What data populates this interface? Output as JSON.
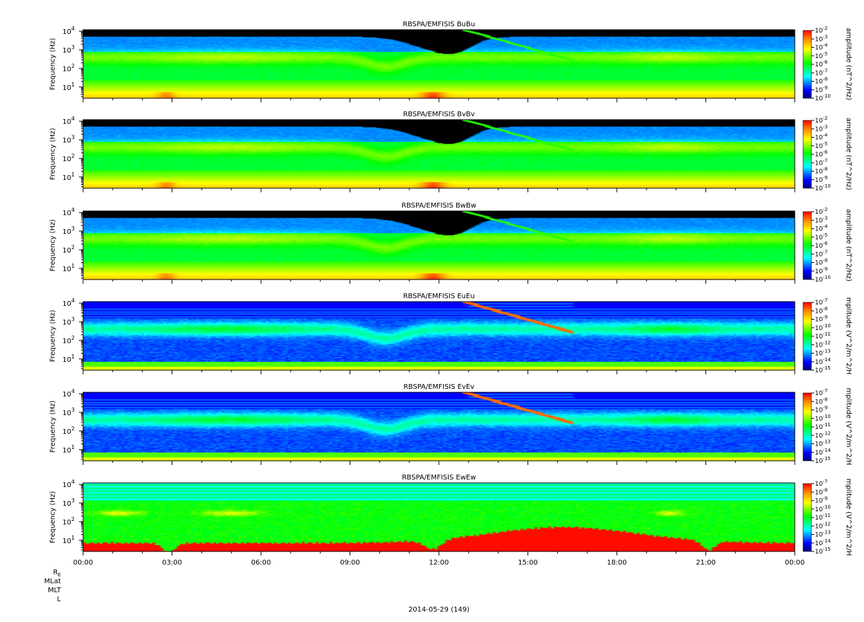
{
  "figure": {
    "date_label": "2014-05-29 (149)",
    "ephemeris_labels": [
      "R",
      "MLat",
      "MLT",
      "L"
    ],
    "ephemeris_subscript": "E"
  },
  "chart_data": [
    {
      "type": "heatmap",
      "title": "RBSPA/EMFISIS  BuBu",
      "ylabel": "Frequency (Hz)",
      "yscale": "log",
      "ylim": [
        2.5,
        12000
      ],
      "y_ticks": [
        {
          "base": "10",
          "exp": "1"
        },
        {
          "base": "10",
          "exp": "2"
        },
        {
          "base": "10",
          "exp": "3"
        },
        {
          "base": "10",
          "exp": "4"
        }
      ],
      "xlim": [
        "00:00",
        "24:00"
      ],
      "x_ticks": [
        "00:00",
        "03:00",
        "06:00",
        "09:00",
        "12:00",
        "15:00",
        "18:00",
        "21:00",
        "00:00"
      ],
      "colorbar": {
        "label": "amplitude (nT^2/Hz)",
        "scale": "log",
        "range": [
          -10,
          -2
        ],
        "ticks": [
          {
            "base": "10",
            "exp": "-2"
          },
          {
            "base": "10",
            "exp": "-3"
          },
          {
            "base": "10",
            "exp": "-4"
          },
          {
            "base": "10",
            "exp": "-5"
          },
          {
            "base": "10",
            "exp": "-6"
          },
          {
            "base": "10",
            "exp": "-7"
          },
          {
            "base": "10",
            "exp": "-8"
          },
          {
            "base": "10",
            "exp": "-9"
          },
          {
            "base": "10",
            "exp": "-10"
          }
        ]
      },
      "kind": "B"
    },
    {
      "type": "heatmap",
      "title": "RBSPA/EMFISIS  BvBv",
      "ylabel": "Frequency (Hz)",
      "yscale": "log",
      "ylim": [
        2.5,
        12000
      ],
      "y_ticks": [
        {
          "base": "10",
          "exp": "1"
        },
        {
          "base": "10",
          "exp": "2"
        },
        {
          "base": "10",
          "exp": "3"
        },
        {
          "base": "10",
          "exp": "4"
        }
      ],
      "xlim": [
        "00:00",
        "24:00"
      ],
      "x_ticks": [
        "00:00",
        "03:00",
        "06:00",
        "09:00",
        "12:00",
        "15:00",
        "18:00",
        "21:00",
        "00:00"
      ],
      "colorbar": {
        "label": "amplitude (nT^2/Hz)",
        "scale": "log",
        "range": [
          -10,
          -2
        ],
        "ticks": [
          {
            "base": "10",
            "exp": "-2"
          },
          {
            "base": "10",
            "exp": "-3"
          },
          {
            "base": "10",
            "exp": "-4"
          },
          {
            "base": "10",
            "exp": "-5"
          },
          {
            "base": "10",
            "exp": "-6"
          },
          {
            "base": "10",
            "exp": "-7"
          },
          {
            "base": "10",
            "exp": "-8"
          },
          {
            "base": "10",
            "exp": "-9"
          },
          {
            "base": "10",
            "exp": "-10"
          }
        ]
      },
      "kind": "B"
    },
    {
      "type": "heatmap",
      "title": "RBSPA/EMFISIS  BwBw",
      "ylabel": "Frequency (Hz)",
      "yscale": "log",
      "ylim": [
        2.5,
        12000
      ],
      "y_ticks": [
        {
          "base": "10",
          "exp": "1"
        },
        {
          "base": "10",
          "exp": "2"
        },
        {
          "base": "10",
          "exp": "3"
        },
        {
          "base": "10",
          "exp": "4"
        }
      ],
      "xlim": [
        "00:00",
        "24:00"
      ],
      "x_ticks": [
        "00:00",
        "03:00",
        "06:00",
        "09:00",
        "12:00",
        "15:00",
        "18:00",
        "21:00",
        "00:00"
      ],
      "colorbar": {
        "label": "amplitude (nT^2/Hz)",
        "scale": "log",
        "range": [
          -10,
          -2
        ],
        "ticks": [
          {
            "base": "10",
            "exp": "-2"
          },
          {
            "base": "10",
            "exp": "-3"
          },
          {
            "base": "10",
            "exp": "-4"
          },
          {
            "base": "10",
            "exp": "-5"
          },
          {
            "base": "10",
            "exp": "-6"
          },
          {
            "base": "10",
            "exp": "-7"
          },
          {
            "base": "10",
            "exp": "-8"
          },
          {
            "base": "10",
            "exp": "-9"
          },
          {
            "base": "10",
            "exp": "-10"
          }
        ]
      },
      "kind": "B"
    },
    {
      "type": "heatmap",
      "title": "RBSPA/EMFISIS  EuEu",
      "ylabel": "Frequency (Hz)",
      "yscale": "log",
      "ylim": [
        2.5,
        12000
      ],
      "y_ticks": [
        {
          "base": "10",
          "exp": "1"
        },
        {
          "base": "10",
          "exp": "2"
        },
        {
          "base": "10",
          "exp": "3"
        },
        {
          "base": "10",
          "exp": "4"
        }
      ],
      "xlim": [
        "00:00",
        "24:00"
      ],
      "x_ticks": [
        "00:00",
        "03:00",
        "06:00",
        "09:00",
        "12:00",
        "15:00",
        "18:00",
        "21:00",
        "00:00"
      ],
      "colorbar": {
        "label": "mplitude (V^2/m^2/H",
        "scale": "log",
        "range": [
          -15,
          -7
        ],
        "ticks": [
          {
            "base": "10",
            "exp": "-7"
          },
          {
            "base": "10",
            "exp": "-8"
          },
          {
            "base": "10",
            "exp": "-9"
          },
          {
            "base": "10",
            "exp": "-10"
          },
          {
            "base": "10",
            "exp": "-11"
          },
          {
            "base": "10",
            "exp": "-12"
          },
          {
            "base": "10",
            "exp": "-13"
          },
          {
            "base": "10",
            "exp": "-14"
          },
          {
            "base": "10",
            "exp": "-15"
          }
        ]
      },
      "kind": "E"
    },
    {
      "type": "heatmap",
      "title": "RBSPA/EMFISIS  EvEv",
      "ylabel": "Frequency (Hz)",
      "yscale": "log",
      "ylim": [
        2.5,
        12000
      ],
      "y_ticks": [
        {
          "base": "10",
          "exp": "1"
        },
        {
          "base": "10",
          "exp": "2"
        },
        {
          "base": "10",
          "exp": "3"
        },
        {
          "base": "10",
          "exp": "4"
        }
      ],
      "xlim": [
        "00:00",
        "24:00"
      ],
      "x_ticks": [
        "00:00",
        "03:00",
        "06:00",
        "09:00",
        "12:00",
        "15:00",
        "18:00",
        "21:00",
        "00:00"
      ],
      "colorbar": {
        "label": "mplitude (V^2/m^2/H",
        "scale": "log",
        "range": [
          -15,
          -7
        ],
        "ticks": [
          {
            "base": "10",
            "exp": "-7"
          },
          {
            "base": "10",
            "exp": "-8"
          },
          {
            "base": "10",
            "exp": "-9"
          },
          {
            "base": "10",
            "exp": "-10"
          },
          {
            "base": "10",
            "exp": "-11"
          },
          {
            "base": "10",
            "exp": "-12"
          },
          {
            "base": "10",
            "exp": "-13"
          },
          {
            "base": "10",
            "exp": "-14"
          },
          {
            "base": "10",
            "exp": "-15"
          }
        ]
      },
      "kind": "E"
    },
    {
      "type": "heatmap",
      "title": "RBSPA/EMFISIS  EwEw",
      "ylabel": "Frequency (Hz)",
      "yscale": "log",
      "ylim": [
        2.5,
        12000
      ],
      "y_ticks": [
        {
          "base": "10",
          "exp": "1"
        },
        {
          "base": "10",
          "exp": "2"
        },
        {
          "base": "10",
          "exp": "3"
        },
        {
          "base": "10",
          "exp": "4"
        }
      ],
      "xlim": [
        "00:00",
        "24:00"
      ],
      "x_ticks": [
        "00:00",
        "03:00",
        "06:00",
        "09:00",
        "12:00",
        "15:00",
        "18:00",
        "21:00",
        "00:00"
      ],
      "colorbar": {
        "label": "mplitude (V^2/m^2/H",
        "scale": "log",
        "range": [
          -15,
          -7
        ],
        "ticks": [
          {
            "base": "10",
            "exp": "-7"
          },
          {
            "base": "10",
            "exp": "-8"
          },
          {
            "base": "10",
            "exp": "-9"
          },
          {
            "base": "10",
            "exp": "-10"
          },
          {
            "base": "10",
            "exp": "-11"
          },
          {
            "base": "10",
            "exp": "-12"
          },
          {
            "base": "10",
            "exp": "-13"
          },
          {
            "base": "10",
            "exp": "-14"
          },
          {
            "base": "10",
            "exp": "-15"
          }
        ]
      },
      "kind": "Ew"
    }
  ]
}
